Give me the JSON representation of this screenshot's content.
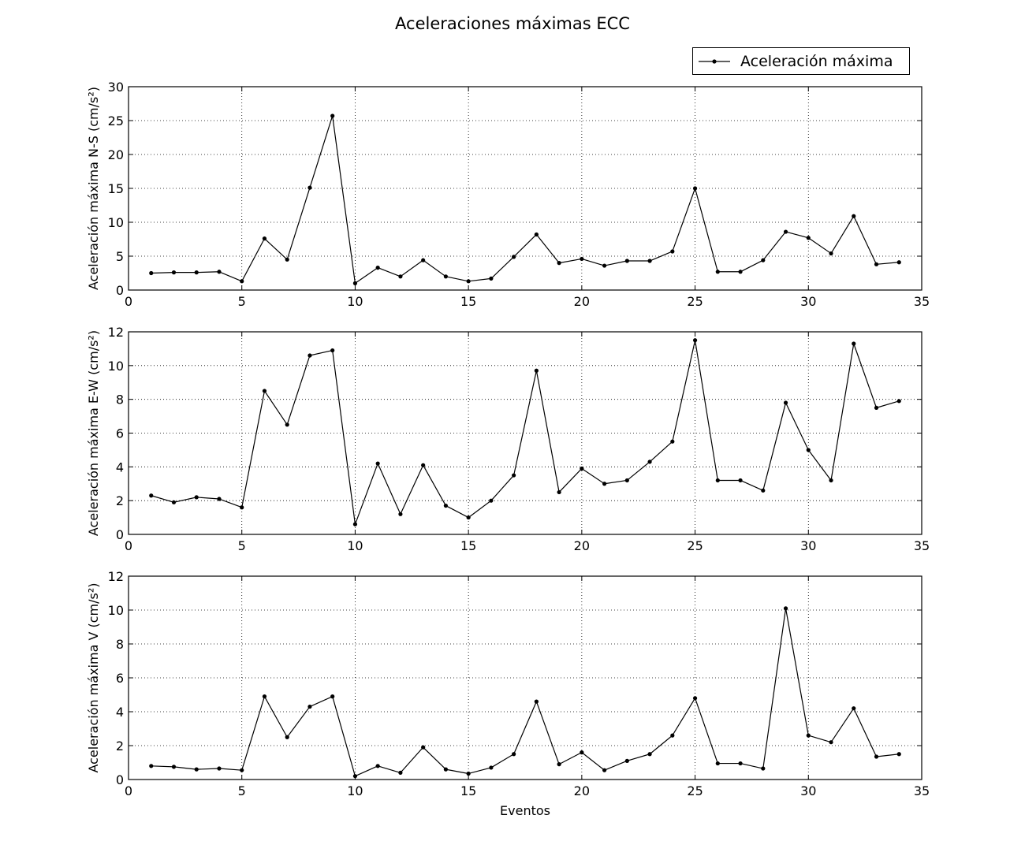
{
  "figure": {
    "title": "Aceleraciones máximas ECC",
    "legend_label": "Aceleración máxima",
    "line_color": "#000000"
  },
  "chart_data": [
    {
      "type": "line",
      "xlabel": "",
      "ylabel": "Aceleración máxima N-S (cm/s²)",
      "xlim": [
        0,
        35
      ],
      "ylim": [
        0,
        30
      ],
      "xticks": [
        0,
        5,
        10,
        15,
        20,
        25,
        30,
        35
      ],
      "yticks": [
        0,
        5,
        10,
        15,
        20,
        25,
        30
      ],
      "grid": true,
      "series": [
        {
          "name": "Aceleración máxima",
          "x": [
            1,
            2,
            3,
            4,
            5,
            6,
            7,
            8,
            9,
            10,
            11,
            12,
            13,
            14,
            15,
            16,
            17,
            18,
            19,
            20,
            21,
            22,
            23,
            24,
            25,
            26,
            27,
            28,
            29,
            30,
            31,
            32,
            33,
            34
          ],
          "y": [
            2.5,
            2.6,
            2.6,
            2.7,
            1.3,
            7.6,
            4.5,
            15.1,
            25.7,
            1.0,
            3.3,
            2.0,
            4.4,
            2.0,
            1.3,
            1.7,
            4.9,
            8.2,
            4.0,
            4.6,
            3.6,
            4.3,
            4.3,
            5.7,
            15.0,
            2.7,
            2.7,
            4.4,
            8.6,
            7.7,
            5.4,
            10.9,
            3.8,
            4.1
          ]
        }
      ]
    },
    {
      "type": "line",
      "xlabel": "",
      "ylabel": "Aceleración máxima E-W (cm/s²)",
      "xlim": [
        0,
        35
      ],
      "ylim": [
        0,
        12
      ],
      "xticks": [
        0,
        5,
        10,
        15,
        20,
        25,
        30,
        35
      ],
      "yticks": [
        0,
        2,
        4,
        6,
        8,
        10,
        12
      ],
      "grid": true,
      "series": [
        {
          "name": "Aceleración máxima",
          "x": [
            1,
            2,
            3,
            4,
            5,
            6,
            7,
            8,
            9,
            10,
            11,
            12,
            13,
            14,
            15,
            16,
            17,
            18,
            19,
            20,
            21,
            22,
            23,
            24,
            25,
            26,
            27,
            28,
            29,
            30,
            31,
            32,
            33,
            34
          ],
          "y": [
            2.3,
            1.9,
            2.2,
            2.1,
            1.6,
            8.5,
            6.5,
            10.6,
            10.9,
            0.6,
            4.2,
            1.2,
            4.1,
            1.7,
            1.0,
            2.0,
            3.5,
            9.7,
            2.5,
            3.9,
            3.0,
            3.2,
            4.3,
            5.5,
            11.5,
            3.2,
            3.2,
            2.6,
            7.8,
            5.0,
            3.2,
            11.3,
            7.5,
            7.9
          ]
        }
      ]
    },
    {
      "type": "line",
      "xlabel": "Eventos",
      "ylabel": "Aceleración máxima V (cm/s²)",
      "xlim": [
        0,
        35
      ],
      "ylim": [
        0,
        12
      ],
      "xticks": [
        0,
        5,
        10,
        15,
        20,
        25,
        30,
        35
      ],
      "yticks": [
        0,
        2,
        4,
        6,
        8,
        10,
        12
      ],
      "grid": true,
      "series": [
        {
          "name": "Aceleración máxima",
          "x": [
            1,
            2,
            3,
            4,
            5,
            6,
            7,
            8,
            9,
            10,
            11,
            12,
            13,
            14,
            15,
            16,
            17,
            18,
            19,
            20,
            21,
            22,
            23,
            24,
            25,
            26,
            27,
            28,
            29,
            30,
            31,
            32,
            33,
            34
          ],
          "y": [
            0.8,
            0.75,
            0.6,
            0.65,
            0.55,
            4.9,
            2.5,
            4.3,
            4.9,
            0.2,
            0.8,
            0.4,
            1.9,
            0.6,
            0.35,
            0.7,
            1.5,
            4.6,
            0.9,
            1.6,
            0.55,
            1.1,
            1.5,
            2.6,
            4.8,
            0.95,
            0.95,
            0.65,
            10.1,
            2.6,
            2.2,
            4.2,
            1.35,
            1.5
          ]
        }
      ]
    }
  ]
}
